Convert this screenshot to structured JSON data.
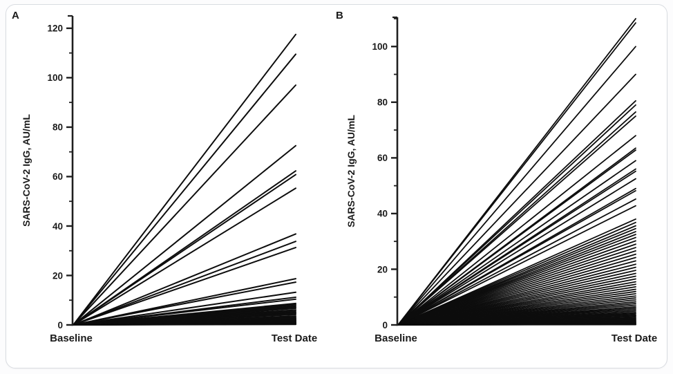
{
  "colors": {
    "line": "#0d0d0d",
    "axis": "#1f1f1f",
    "text": "#1a1a1a",
    "card_border": "#d9dce1",
    "card_bg": "#ffffff",
    "page_bg": "#fcfcfd"
  },
  "chart_data": [
    {
      "type": "line",
      "panel": "A",
      "ylabel": "SARS-CoV-2 IgG, AU/mL",
      "categories": [
        "Baseline",
        "Test Date"
      ],
      "ylim": [
        0,
        125
      ],
      "yticks": [
        0,
        20,
        40,
        60,
        80,
        100,
        120
      ],
      "minor_tick_step": 10,
      "grid": false,
      "legend": false,
      "baseline_value": 0,
      "line_width": 2.0,
      "test_date_values": [
        117.5,
        109.5,
        97,
        72.5,
        62.3,
        60.8,
        55.3,
        36.8,
        33.8,
        31.3,
        18.7,
        17.3,
        13.2,
        11.2,
        10.4,
        8.7,
        8.2,
        7.7,
        7.2,
        6.7,
        6.1,
        5.6,
        5.1,
        4.7,
        4.2,
        3.6,
        3.1,
        2.7,
        2.3,
        2.0,
        1.7,
        1.4,
        1.1,
        0.9,
        0.7,
        0.5,
        0.35,
        0.2
      ]
    },
    {
      "type": "line",
      "panel": "B",
      "ylabel": "SARS-CoV-2 IgG, AU/mL",
      "categories": [
        "Baseline",
        "Test Date"
      ],
      "ylim": [
        0,
        110.5
      ],
      "yticks": [
        0,
        20,
        40,
        60,
        80,
        100
      ],
      "minor_tick_step": 10,
      "grid": false,
      "legend": false,
      "baseline_value": 0,
      "line_width": 1.8,
      "test_date_values": [
        110,
        108.5,
        100,
        90,
        80.5,
        79,
        76.5,
        75,
        68,
        63.5,
        62.8,
        59,
        56,
        55.2,
        52.5,
        49,
        48.2,
        45.2,
        42.8,
        38,
        36.8,
        35.6,
        34.6,
        33.5,
        32.5,
        31.4,
        30.2,
        29,
        27.8,
        26.6,
        25.4,
        24.2,
        23,
        21.8,
        20.7,
        19.6,
        18.5,
        17.5,
        16.5,
        15.5,
        14.6,
        13.7,
        12.8,
        12,
        11.2,
        10.4,
        9.7,
        9,
        8.3,
        7.7,
        7.1,
        6.5,
        6,
        5.5,
        5,
        4.5,
        4.1,
        3.7,
        3.3,
        2.9,
        2.5,
        2.2,
        1.9,
        1.6,
        1.3,
        1.1,
        0.9,
        0.7,
        0.5,
        0.35,
        0.2,
        0.1
      ]
    }
  ]
}
